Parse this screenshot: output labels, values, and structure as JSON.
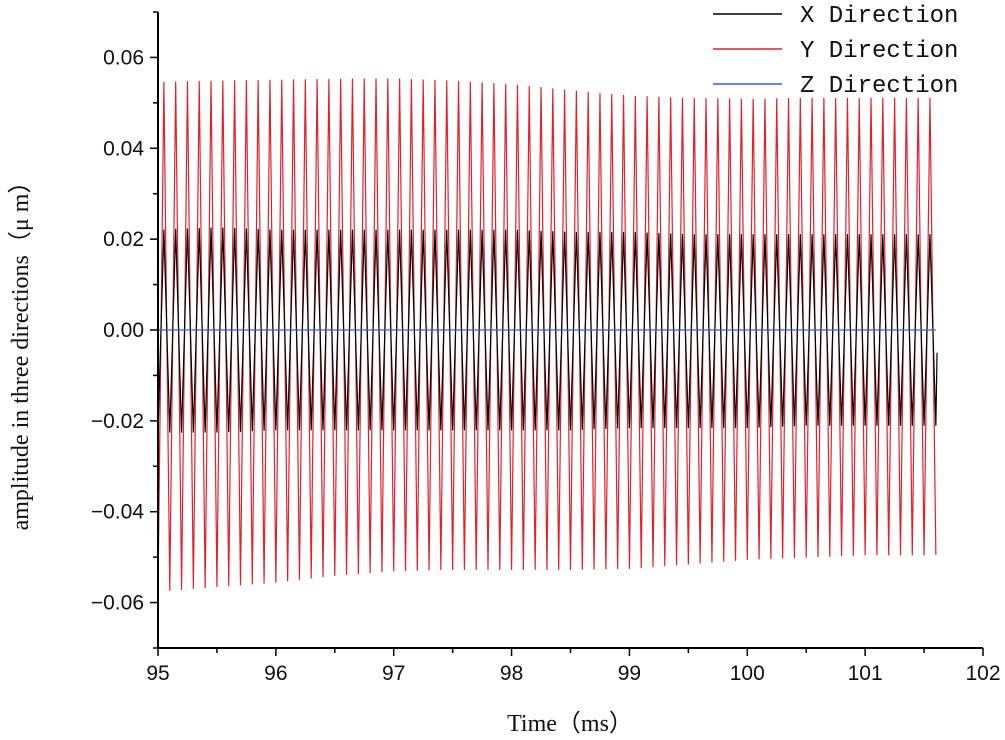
{
  "chart_data": {
    "type": "line",
    "title": "",
    "xlabel": "Time（ms）",
    "ylabel": "amplitude in three directions（μ m）",
    "xlim": [
      95,
      102
    ],
    "ylim": [
      -0.07,
      0.07
    ],
    "x_ticks": [
      95,
      96,
      97,
      98,
      99,
      100,
      101,
      102
    ],
    "x_tick_labels": [
      "95",
      "96",
      "97",
      "98",
      "99",
      "100",
      "101",
      "102"
    ],
    "y_ticks": [
      -0.06,
      -0.04,
      -0.02,
      0.0,
      0.02,
      0.04,
      0.06
    ],
    "y_tick_labels": [
      "−0.06",
      "−0.04",
      "−0.02",
      "0.00",
      "0.02",
      "0.04",
      "0.06"
    ],
    "legend_position": "top-right",
    "series": [
      {
        "name": "X Direction",
        "color": "#000000",
        "t_start": 95.0,
        "t_end": 101.6,
        "cycles": 66,
        "envelope_t": [
          95.0,
          95.5,
          96.0,
          96.5,
          97.0,
          97.5,
          98.0,
          98.5,
          99.0,
          99.5,
          100.0,
          100.5,
          101.0,
          101.6
        ],
        "envelope_upper": [
          0.022,
          0.0225,
          0.022,
          0.022,
          0.022,
          0.022,
          0.022,
          0.0215,
          0.0215,
          0.021,
          0.021,
          0.021,
          0.021,
          0.021
        ],
        "envelope_lower": [
          -0.0225,
          -0.0225,
          -0.022,
          -0.022,
          -0.022,
          -0.022,
          -0.022,
          -0.022,
          -0.0215,
          -0.0215,
          -0.0215,
          -0.021,
          -0.021,
          -0.021
        ],
        "end_point": [
          101.61,
          -0.005
        ]
      },
      {
        "name": "Y Direction",
        "color": "#e0212e",
        "t_start": 95.0,
        "t_end": 101.6,
        "cycles": 66,
        "envelope_t": [
          95.0,
          95.5,
          96.0,
          96.5,
          97.0,
          97.5,
          98.0,
          98.5,
          99.0,
          99.5,
          100.0,
          100.5,
          101.0,
          101.6
        ],
        "envelope_upper": [
          0.0545,
          0.0548,
          0.055,
          0.0552,
          0.0553,
          0.0548,
          0.054,
          0.0527,
          0.0515,
          0.051,
          0.0508,
          0.051,
          0.051,
          0.051
        ],
        "envelope_lower": [
          -0.0575,
          -0.0565,
          -0.0555,
          -0.054,
          -0.053,
          -0.0527,
          -0.0527,
          -0.0527,
          -0.0525,
          -0.0515,
          -0.0505,
          -0.05,
          -0.0495,
          -0.0495
        ]
      },
      {
        "name": "Z Direction",
        "color": "#3a5fcd",
        "t_start": 95.0,
        "t_end": 101.6,
        "value": 0.0
      }
    ]
  }
}
